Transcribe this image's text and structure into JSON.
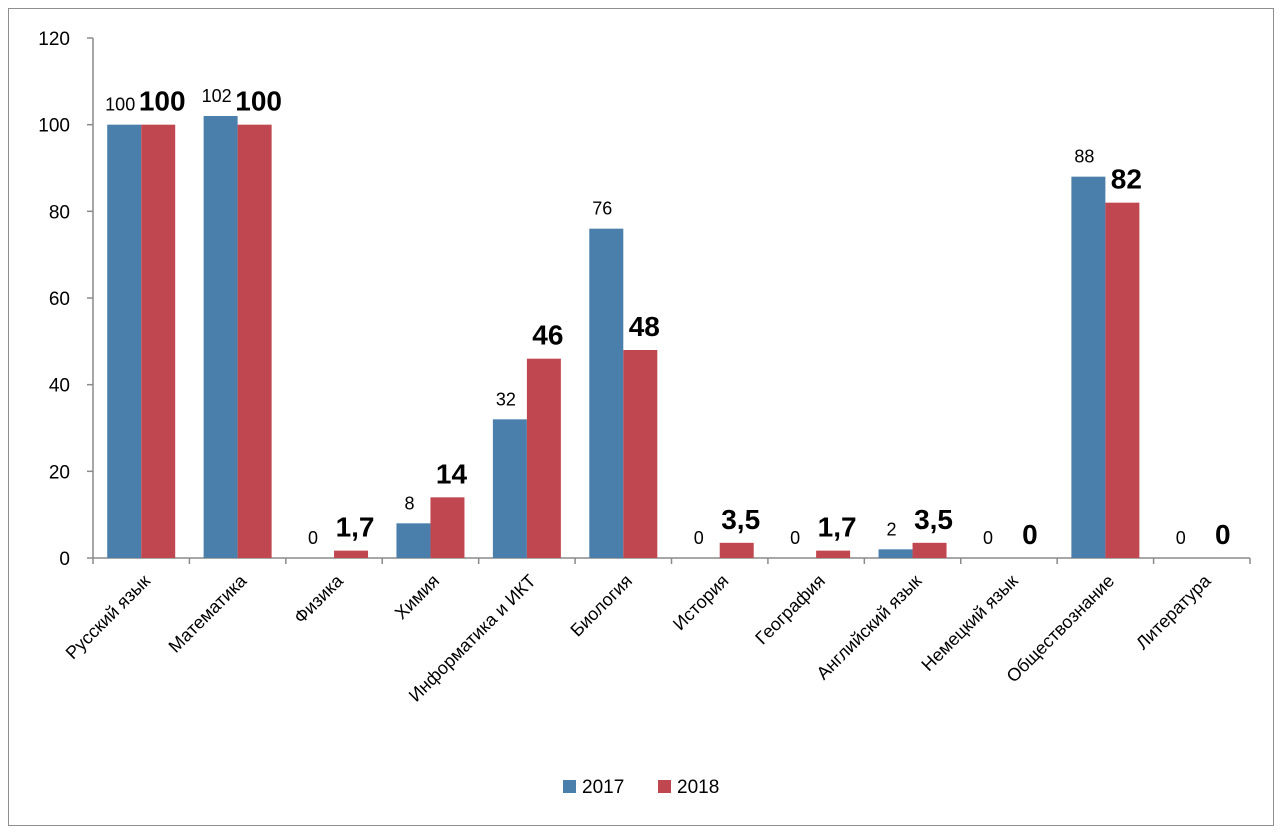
{
  "chart_data": {
    "type": "bar",
    "title": "",
    "xlabel": "",
    "ylabel": "",
    "ylim": [
      0,
      120
    ],
    "yticks": [
      0,
      20,
      40,
      60,
      80,
      100,
      120
    ],
    "grid": false,
    "legend_position": "bottom",
    "categories": [
      "Русский язык",
      "Математика",
      "Физика",
      "Химия",
      "Информатика и ИКТ",
      "Биология",
      "История",
      "География",
      "Английский язык",
      "Немецкий язык",
      "Обществознание",
      "Литература"
    ],
    "series": [
      {
        "name": "2017",
        "color": "#4a7eab",
        "values": [
          100,
          102,
          0,
          8,
          32,
          76,
          0,
          0,
          2,
          0,
          88,
          0
        ],
        "labels": [
          "100",
          "102",
          "0",
          "8",
          "32",
          "76",
          "0",
          "0",
          "2",
          "0",
          "88",
          "0"
        ]
      },
      {
        "name": "2018",
        "color": "#c0474f",
        "values": [
          100,
          100,
          1.7,
          14,
          46,
          48,
          3.5,
          1.7,
          3.5,
          0,
          82,
          0
        ],
        "labels": [
          "100",
          "100",
          "1,7",
          "14",
          "46",
          "48",
          "3,5",
          "1,7",
          "3,5",
          "0",
          "82",
          "0"
        ]
      }
    ]
  }
}
